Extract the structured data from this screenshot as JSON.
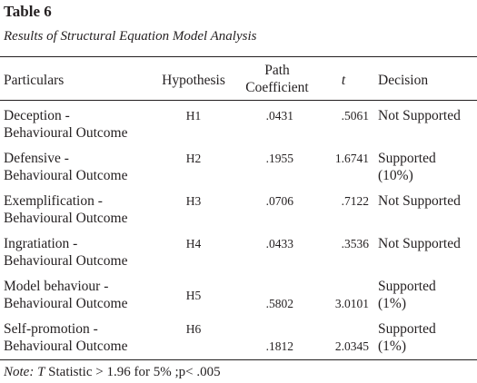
{
  "header": {
    "title": "Table 6",
    "subtitle": "Results of Structural Equation Model Analysis"
  },
  "table": {
    "columns": [
      [
        "Particulars"
      ],
      [
        "Hypothesis"
      ],
      [
        "Path",
        "Coefficient"
      ],
      [
        "t"
      ],
      [
        "Decision"
      ]
    ],
    "rows": [
      [
        [
          "Deception -",
          "Behavioural Outcome"
        ],
        "H1",
        ".0431",
        ".5061",
        [
          "Not Supported"
        ]
      ],
      [
        [
          "Defensive -",
          "Behavioural Outcome"
        ],
        "H2",
        ".1955",
        "1.6741",
        [
          "Supported",
          "(10%)"
        ]
      ],
      [
        [
          "Exemplification -",
          "Behavioural Outcome"
        ],
        "H3",
        ".0706",
        ".7122",
        [
          "Not Supported"
        ]
      ],
      [
        [
          "Ingratiation -",
          "Behavioural Outcome"
        ],
        "H4",
        ".0433",
        ".3536",
        [
          "Not Supported"
        ]
      ],
      [
        [
          "Model behaviour -",
          "Behavioural Outcome"
        ],
        "H5",
        ".5802",
        "3.0101",
        [
          "Supported",
          "(1%)"
        ]
      ],
      [
        [
          "Self-promotion -",
          "Behavioural Outcome"
        ],
        "H6",
        ".1812",
        "2.0345",
        [
          "Supported",
          "(1%)"
        ]
      ]
    ]
  },
  "note": {
    "label": "Note:",
    "symbol": "T",
    "text": "Statistic > 1.96 for 5% ;p< .005"
  }
}
